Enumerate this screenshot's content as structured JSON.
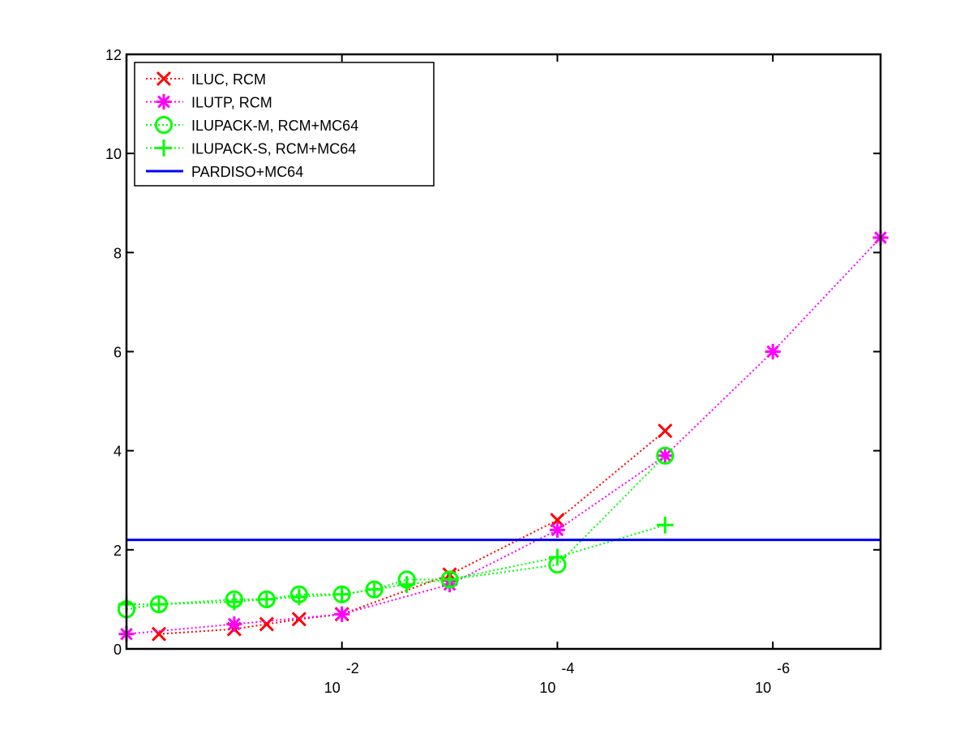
{
  "chart_data": {
    "type": "line",
    "title": "",
    "xlabel": "",
    "ylabel": "",
    "x_scale": "log-reversed",
    "xlim": [
      1,
      1e-07
    ],
    "ylim": [
      0,
      12
    ],
    "grid": false,
    "legend_position": "top-left",
    "y_ticks": [
      {
        "value": 0,
        "label": "0"
      },
      {
        "value": 2,
        "label": "2"
      },
      {
        "value": 4,
        "label": "4"
      },
      {
        "value": 6,
        "label": "6"
      },
      {
        "value": 8,
        "label": "8"
      },
      {
        "value": 10,
        "label": "10"
      },
      {
        "value": 12,
        "label": "12"
      }
    ],
    "x_ticks": [
      {
        "value": 0.01,
        "base": "10",
        "exponent": "-2"
      },
      {
        "value": 0.0001,
        "base": "10",
        "exponent": "-4"
      },
      {
        "value": 1e-06,
        "base": "10",
        "exponent": "-6"
      }
    ],
    "series": [
      {
        "name": "ILUC, RCM",
        "color": "#ff0000",
        "marker": "x",
        "line_style": "dotted",
        "points": [
          [
            0.5,
            0.3
          ],
          [
            0.1,
            0.4
          ],
          [
            0.05,
            0.5
          ],
          [
            0.025,
            0.6
          ],
          [
            0.01,
            0.7
          ],
          [
            0.001,
            1.5
          ],
          [
            0.0001,
            2.6
          ],
          [
            1e-05,
            4.4
          ]
        ]
      },
      {
        "name": "ILUTP, RCM",
        "color": "#ff00ff",
        "marker": "asterisk",
        "line_style": "dotted",
        "points": [
          [
            1,
            0.3
          ],
          [
            0.1,
            0.5
          ],
          [
            0.01,
            0.7
          ],
          [
            0.001,
            1.3
          ],
          [
            0.0001,
            2.4
          ],
          [
            1e-05,
            3.9
          ],
          [
            1e-06,
            6.0
          ],
          [
            1e-07,
            8.3
          ]
        ]
      },
      {
        "name": "ILUPACK-M, RCM+MC64",
        "color": "#00ff00",
        "marker": "circle",
        "line_style": "dotted",
        "points": [
          [
            1,
            0.8
          ],
          [
            0.5,
            0.9
          ],
          [
            0.1,
            1.0
          ],
          [
            0.05,
            1.0
          ],
          [
            0.025,
            1.1
          ],
          [
            0.01,
            1.1
          ],
          [
            0.005,
            1.2
          ],
          [
            0.0025,
            1.4
          ],
          [
            0.001,
            1.4
          ],
          [
            0.0001,
            1.7
          ],
          [
            1e-05,
            3.9
          ]
        ]
      },
      {
        "name": "ILUPACK-S, RCM+MC64",
        "color": "#00ff00",
        "marker": "plus",
        "line_style": "dotted",
        "points": [
          [
            1,
            0.9
          ],
          [
            0.5,
            0.9
          ],
          [
            0.1,
            0.95
          ],
          [
            0.05,
            1.0
          ],
          [
            0.025,
            1.05
          ],
          [
            0.01,
            1.1
          ],
          [
            0.005,
            1.2
          ],
          [
            0.0025,
            1.3
          ],
          [
            0.001,
            1.4
          ],
          [
            0.0001,
            1.85
          ],
          [
            1e-05,
            2.5
          ]
        ]
      },
      {
        "name": "PARDISO+MC64",
        "color": "#0000ff",
        "marker": "none",
        "line_style": "solid",
        "points": [
          [
            1,
            2.2
          ],
          [
            1e-07,
            2.2
          ]
        ]
      }
    ]
  }
}
